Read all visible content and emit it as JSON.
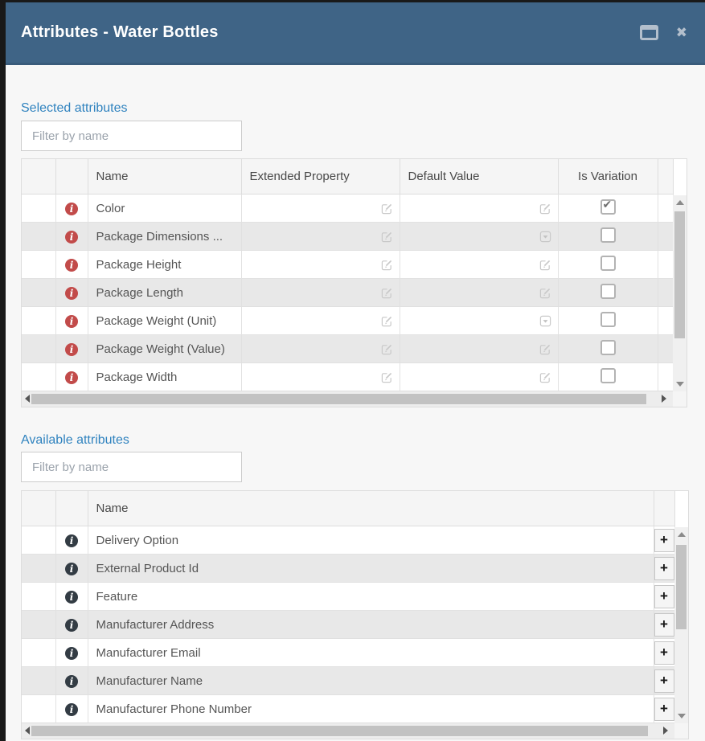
{
  "titlebar": {
    "title": "Attributes - Water Bottles",
    "maximize_icon": "window-maximize-icon",
    "close_icon": "close-icon"
  },
  "colors": {
    "titlebar_bg": "#3f6486",
    "heading_blue": "#3083bf",
    "info_icon_red": "#c24b4a",
    "info_icon_dark": "#333c44",
    "row_stripe": "#e8e8e8"
  },
  "selected": {
    "heading": "Selected attributes",
    "filter_placeholder": "Filter by name",
    "filter_value": "",
    "columns": {
      "name": "Name",
      "extended_property": "Extended Property",
      "default_value": "Default Value",
      "is_variation": "Is Variation"
    },
    "rows": [
      {
        "info_icon": "info-icon",
        "name": "Color",
        "extended_property_icon": "edit-icon",
        "default_value_icon": "edit-icon",
        "is_variation": true
      },
      {
        "info_icon": "info-icon",
        "name": "Package Dimensions ...",
        "extended_property_icon": "edit-icon",
        "default_value_icon": "dropdown-icon",
        "is_variation": false
      },
      {
        "info_icon": "info-icon",
        "name": "Package Height",
        "extended_property_icon": "edit-icon",
        "default_value_icon": "edit-icon",
        "is_variation": false
      },
      {
        "info_icon": "info-icon",
        "name": "Package Length",
        "extended_property_icon": "edit-icon",
        "default_value_icon": "edit-icon",
        "is_variation": false
      },
      {
        "info_icon": "info-icon",
        "name": "Package Weight (Unit)",
        "extended_property_icon": "edit-icon",
        "default_value_icon": "dropdown-icon",
        "is_variation": false
      },
      {
        "info_icon": "info-icon",
        "name": "Package Weight (Value)",
        "extended_property_icon": "edit-icon",
        "default_value_icon": "edit-icon",
        "is_variation": false
      },
      {
        "info_icon": "info-icon",
        "name": "Package Width",
        "extended_property_icon": "edit-icon",
        "default_value_icon": "edit-icon",
        "is_variation": false
      }
    ]
  },
  "available": {
    "heading": "Available attributes",
    "filter_placeholder": "Filter by name",
    "filter_value": "",
    "columns": {
      "name": "Name"
    },
    "add_button_icon": "plus-icon",
    "rows": [
      {
        "info_icon": "info-icon",
        "name": "Delivery Option"
      },
      {
        "info_icon": "info-icon",
        "name": "External Product Id"
      },
      {
        "info_icon": "info-icon",
        "name": "Feature"
      },
      {
        "info_icon": "info-icon",
        "name": "Manufacturer Address"
      },
      {
        "info_icon": "info-icon",
        "name": "Manufacturer Email"
      },
      {
        "info_icon": "info-icon",
        "name": "Manufacturer Name"
      },
      {
        "info_icon": "info-icon",
        "name": "Manufacturer Phone Number"
      }
    ]
  }
}
